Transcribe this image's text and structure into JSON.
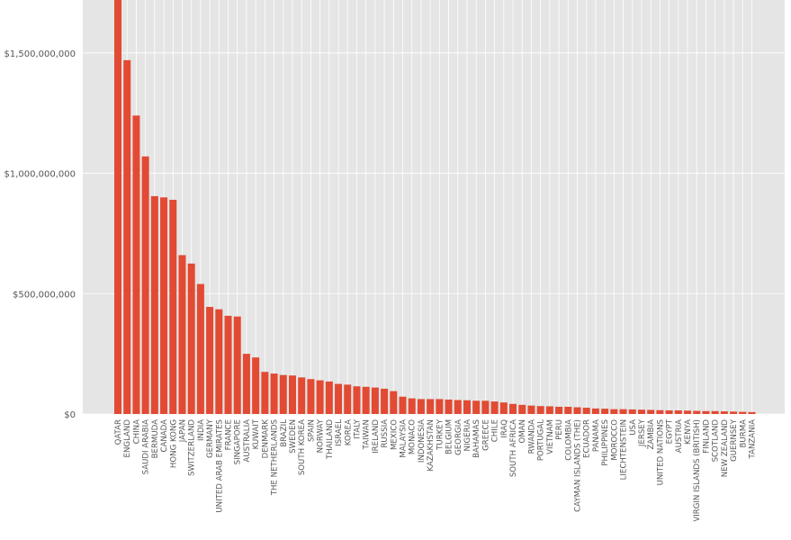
{
  "colors": {
    "background": "#ffffff",
    "plot_background": "#e5e5e5",
    "grid": "#ffffff",
    "bar": "#e24a33",
    "text": "#555555"
  },
  "chart_data": {
    "type": "bar",
    "title": "",
    "xlabel": "",
    "ylabel": "",
    "ylim": [
      0,
      1720000000
    ],
    "yticks": [
      0,
      500000000,
      1000000000,
      1500000000
    ],
    "ytick_labels": [
      "$0",
      "$500,000,000",
      "$1,000,000,000",
      "$1,500,000,000"
    ],
    "grid": true,
    "categories": [
      "QATAR",
      "ENGLAND",
      "CHINA",
      "SAUDI ARABIA",
      "BERMUDA",
      "CANADA",
      "HONG KONG",
      "JAPAN",
      "SWITZERLAND",
      "INDIA",
      "GERMANY",
      "UNITED ARAB EMIRATES",
      "FRANCE",
      "SINGAPORE",
      "AUSTRALIA",
      "KUWAIT",
      "DENMARK",
      "THE NETHERLANDS",
      "BRAZIL",
      "SWEDEN",
      "SOUTH KOREA",
      "SPAIN",
      "NORWAY",
      "THAILAND",
      "ISRAEL",
      "KOREA",
      "ITALY",
      "TAIWAN",
      "IRELAND",
      "RUSSIA",
      "MEXICO",
      "MALAYSIA",
      "MONACO",
      "INDONESIA",
      "KAZAKHSTAN",
      "TURKEY",
      "BELGIUM",
      "GEORGIA",
      "NIGERIA",
      "BAHAMAS",
      "GREECE",
      "CHILE",
      "IRAQ",
      "SOUTH AFRICA",
      "OMAN",
      "RWANDA",
      "PORTUGAL",
      "VIETNAM",
      "PERU",
      "COLOMBIA",
      "CAYMAN ISLANDS (THE)",
      "ECUADOR",
      "PANAMA",
      "PHILIPPINES",
      "MOROCCO",
      "LIECHTENSTEIN",
      "USA",
      "JERSEY",
      "ZAMBIA",
      "UNITED NATIONS",
      "EGYPT",
      "AUSTRIA",
      "KENYA",
      "VIRGIN ISLANDS (BRITISH)",
      "FINLAND",
      "SCOTLAND",
      "NEW ZEALAND",
      "GUERNSEY",
      "BURMA",
      "TANZANIA"
    ],
    "values": [
      1720000000,
      1470000000,
      1240000000,
      1070000000,
      905000000,
      900000000,
      890000000,
      660000000,
      625000000,
      540000000,
      445000000,
      435000000,
      408000000,
      405000000,
      250000000,
      235000000,
      175000000,
      168000000,
      162000000,
      160000000,
      152000000,
      145000000,
      140000000,
      135000000,
      125000000,
      122000000,
      115000000,
      113000000,
      110000000,
      105000000,
      95000000,
      72000000,
      65000000,
      62000000,
      62000000,
      62000000,
      60000000,
      58000000,
      57000000,
      55000000,
      55000000,
      52000000,
      48000000,
      42000000,
      38000000,
      35000000,
      33000000,
      32000000,
      30000000,
      30000000,
      28000000,
      26000000,
      23000000,
      22000000,
      20000000,
      20000000,
      19000000,
      18000000,
      17000000,
      16000000,
      15000000,
      15000000,
      14000000,
      13000000,
      12000000,
      12000000,
      11000000,
      10000000,
      9000000,
      8000000
    ]
  }
}
